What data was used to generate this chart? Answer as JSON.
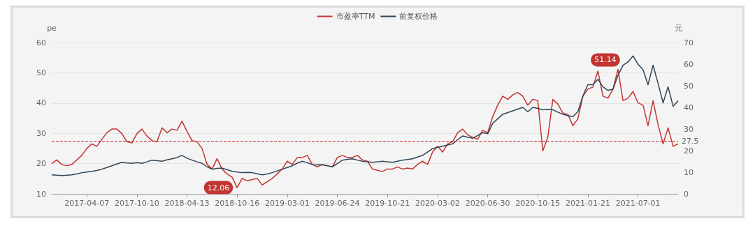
{
  "chart_data": {
    "type": "line",
    "categories": [
      null,
      null,
      null,
      null,
      null,
      null,
      null,
      "2017-04-07",
      null,
      null,
      null,
      null,
      null,
      null,
      null,
      null,
      null,
      "2017-10-10",
      null,
      null,
      null,
      null,
      null,
      null,
      null,
      null,
      null,
      "2018-04-13",
      null,
      null,
      null,
      null,
      null,
      null,
      null,
      null,
      null,
      "2018-10-16",
      null,
      null,
      null,
      null,
      null,
      null,
      null,
      null,
      null,
      "2019-03-01",
      null,
      null,
      null,
      null,
      null,
      null,
      null,
      null,
      null,
      "2019-06-24",
      null,
      null,
      null,
      null,
      null,
      null,
      null,
      null,
      null,
      "2019-10-21",
      null,
      null,
      null,
      null,
      null,
      null,
      null,
      null,
      null,
      "2020-03-02",
      null,
      null,
      null,
      null,
      null,
      null,
      null,
      null,
      null,
      "2020-06-30",
      null,
      null,
      null,
      null,
      null,
      null,
      null,
      null,
      null,
      "2020-10-15",
      null,
      null,
      null,
      null,
      null,
      null,
      null,
      null,
      null,
      "2021-01-21",
      null,
      null,
      null,
      null,
      null,
      null,
      null,
      null,
      null,
      "2021-07-01",
      null,
      null,
      null,
      null,
      null,
      null,
      null,
      null
    ],
    "series": [
      {
        "name": "市盈率TTM",
        "color": "#c23531",
        "values": [
          20.0,
          21.2,
          19.7,
          19.3,
          19.7,
          21.2,
          22.7,
          25.0,
          26.5,
          25.7,
          28.0,
          30.2,
          31.4,
          31.4,
          29.9,
          27.2,
          26.8,
          29.9,
          31.4,
          29.1,
          27.6,
          27.2,
          31.8,
          30.2,
          31.4,
          31.0,
          34.0,
          30.6,
          27.6,
          27.2,
          25.0,
          19.7,
          18.2,
          21.6,
          18.2,
          16.6,
          15.5,
          12.06,
          15.1,
          14.3,
          14.7,
          15.1,
          12.9,
          14.0,
          15.1,
          16.6,
          18.2,
          20.8,
          19.7,
          22.0,
          22.0,
          22.7,
          19.7,
          18.9,
          19.7,
          19.3,
          18.9,
          22.0,
          22.7,
          22.0,
          22.0,
          22.7,
          21.2,
          20.8,
          18.2,
          17.8,
          17.4,
          18.2,
          18.2,
          18.9,
          18.2,
          18.5,
          18.2,
          19.7,
          20.8,
          19.7,
          23.8,
          25.7,
          23.8,
          26.5,
          27.2,
          30.2,
          31.4,
          29.5,
          28.7,
          28.0,
          31.0,
          30.2,
          35.5,
          39.3,
          42.3,
          41.2,
          42.7,
          43.5,
          42.3,
          39.3,
          41.2,
          40.8,
          24.2,
          28.7,
          41.2,
          39.7,
          36.7,
          36.3,
          32.5,
          34.8,
          42.3,
          44.6,
          45.3,
          50.6,
          42.3,
          41.6,
          44.6,
          51.14,
          40.8,
          41.6,
          43.8,
          40.1,
          39.3,
          32.5,
          40.8,
          32.9,
          26.5,
          31.8,
          25.7,
          26.5
        ]
      },
      {
        "name": "前复权价格",
        "color": "#2f4554",
        "axis": "y2",
        "values": [
          8.8,
          8.6,
          8.5,
          8.6,
          8.8,
          9.2,
          9.8,
          10.1,
          10.4,
          10.8,
          11.4,
          12.2,
          13.0,
          13.8,
          14.6,
          14.3,
          14.1,
          14.4,
          14.1,
          14.8,
          15.6,
          15.3,
          15.1,
          15.7,
          16.2,
          16.8,
          17.8,
          16.5,
          15.6,
          14.8,
          14.1,
          12.5,
          11.4,
          11.8,
          11.9,
          11.2,
          10.4,
          10.1,
          9.8,
          9.9,
          9.8,
          9.3,
          8.8,
          9.2,
          9.8,
          10.6,
          11.4,
          12.2,
          13.0,
          14.2,
          15.1,
          14.4,
          13.5,
          13.4,
          13.5,
          13.0,
          12.5,
          14.0,
          15.6,
          16.0,
          16.2,
          15.6,
          15.1,
          14.8,
          14.6,
          14.8,
          15.1,
          14.8,
          14.6,
          15.1,
          15.6,
          15.9,
          16.2,
          17.0,
          17.8,
          19.3,
          20.9,
          21.5,
          22.0,
          22.6,
          23.1,
          25.0,
          26.8,
          26.2,
          25.7,
          27.0,
          28.3,
          27.8,
          32.6,
          34.7,
          36.8,
          37.6,
          38.4,
          39.2,
          40.0,
          38.0,
          40.0,
          39.5,
          38.9,
          39.0,
          38.9,
          37.8,
          36.8,
          36.2,
          35.7,
          38.0,
          45.3,
          50.5,
          50.5,
          53.0,
          49.5,
          47.9,
          48.4,
          54.8,
          59.5,
          61.0,
          63.8,
          60.0,
          57.4,
          50.5,
          59.5,
          51.1,
          42.1,
          49.5,
          40.5,
          43.1
        ]
      }
    ],
    "ylabel": "pe",
    "y2label": "元",
    "ylim": [
      10,
      60
    ],
    "yticks": [
      10,
      20,
      30,
      40,
      50,
      60
    ],
    "y2lim": [
      0,
      70
    ],
    "y2ticks": [
      0,
      10,
      20,
      30,
      40,
      50,
      60,
      70
    ],
    "ref_lines": [
      {
        "axis": "y",
        "value": 27.5,
        "label": "27.5",
        "color": "#c23531",
        "line_style": "dashed"
      }
    ],
    "annotations": [
      "51.14",
      {
        "text": "12.06",
        "x": "2018-10-16",
        "y": 12.06
      }
    ],
    "grid": "y",
    "legend": "top",
    "marker": "none",
    "line_style": "solid"
  }
}
